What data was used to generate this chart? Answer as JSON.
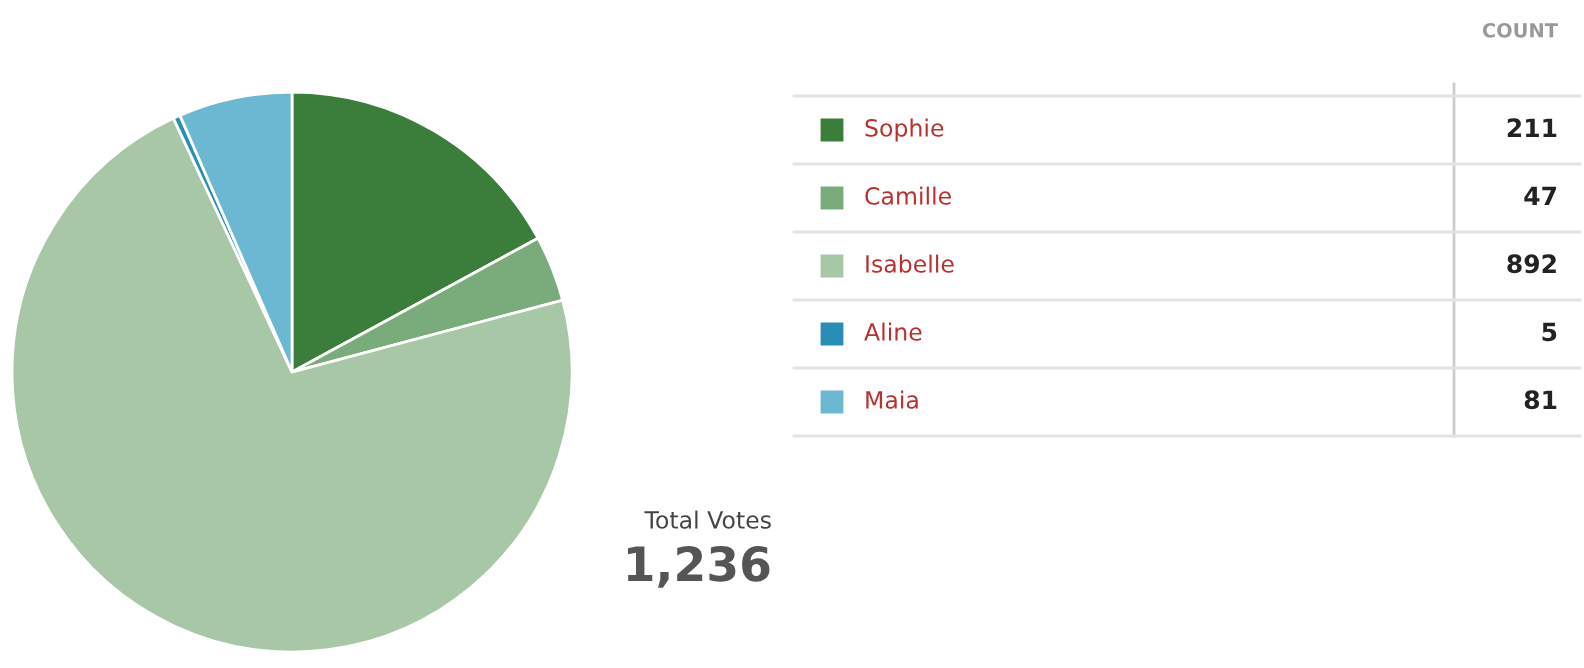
{
  "chart_data": {
    "type": "pie",
    "legend_title": "COUNT",
    "categories": [
      "Sophie",
      "Camille",
      "Isabelle",
      "Aline",
      "Maia"
    ],
    "values": [
      211,
      47,
      892,
      5,
      81
    ],
    "colors": [
      "#3b7d3b",
      "#7aab7a",
      "#a7c7a7",
      "#2a8db5",
      "#6cb8d2"
    ],
    "data_labels": true,
    "legend": "right",
    "annotations": [
      "Total Votes",
      "1,236"
    ]
  }
}
